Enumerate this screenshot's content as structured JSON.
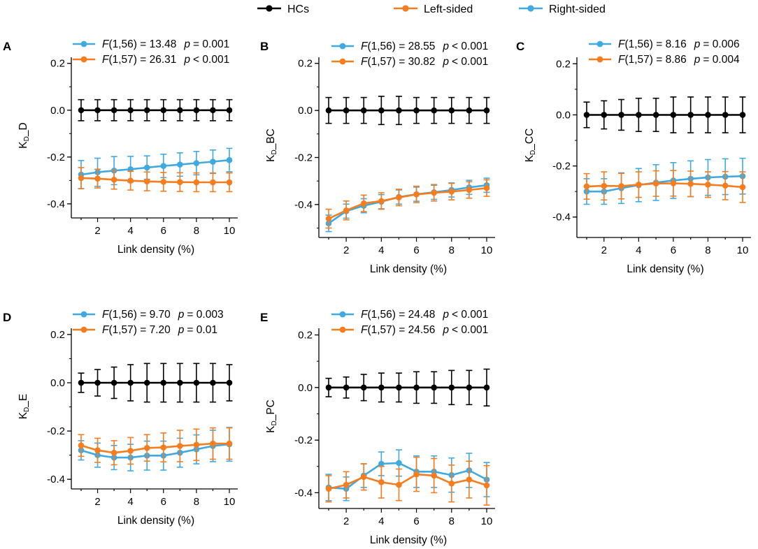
{
  "legend": {
    "items": [
      {
        "label": "HCs",
        "color": "#000000"
      },
      {
        "label": "Left-sided",
        "color": "#F47D20"
      },
      {
        "label": "Right-sided",
        "color": "#3FA9E0"
      }
    ]
  },
  "colors": {
    "hcs": "#000000",
    "left": "#F47D20",
    "right": "#3FA9E0"
  },
  "chart_data": [
    {
      "type": "line",
      "panel": "A",
      "ylabel": "KD_D",
      "ylabel_main": "K",
      "ylabel_sub": "D",
      "ylabel_suffix": "_D",
      "xlabel": "Link density (%)",
      "xlim": [
        0.5,
        10.5
      ],
      "ylim": [
        -0.46,
        0.22
      ],
      "xticks": [
        "2",
        "4",
        "6",
        "8",
        "10"
      ],
      "yticks": [
        "0.2",
        "0.0",
        "-0.2",
        "-0.4"
      ],
      "x": [
        1,
        2,
        3,
        4,
        5,
        6,
        7,
        8,
        9,
        10
      ],
      "stats": [
        {
          "color": "right",
          "F": "F",
          "dof": "(1,56) = 13.48",
          "p": "p",
          "pval": "= 0.001"
        },
        {
          "color": "left",
          "F": "F",
          "dof": "(1,57) = 26.31",
          "p": "p",
          "pval": "< 0.001"
        }
      ],
      "series": [
        {
          "name": "HCs",
          "color": "hcs",
          "values": [
            0,
            0,
            0,
            0,
            0,
            0,
            0,
            0,
            0,
            0
          ],
          "err": [
            0.045,
            0.045,
            0.045,
            0.045,
            0.045,
            0.045,
            0.045,
            0.045,
            0.045,
            0.045
          ]
        },
        {
          "name": "Left-sided",
          "color": "left",
          "values": [
            -0.29,
            -0.292,
            -0.297,
            -0.301,
            -0.304,
            -0.306,
            -0.307,
            -0.308,
            -0.308,
            -0.308
          ],
          "err": [
            0.045,
            0.04,
            0.04,
            0.04,
            0.04,
            0.04,
            0.04,
            0.04,
            0.04,
            0.04
          ]
        },
        {
          "name": "Right-sided",
          "color": "right",
          "values": [
            -0.275,
            -0.265,
            -0.258,
            -0.252,
            -0.245,
            -0.238,
            -0.232,
            -0.226,
            -0.22,
            -0.213
          ],
          "err": [
            0.06,
            0.06,
            0.06,
            0.055,
            0.05,
            0.05,
            0.05,
            0.05,
            0.05,
            0.05
          ]
        }
      ]
    },
    {
      "type": "line",
      "panel": "B",
      "ylabel": "KD_BC",
      "ylabel_main": "K",
      "ylabel_sub": "D",
      "ylabel_suffix": "_BC",
      "xlabel": "Link density (%)",
      "xlim": [
        0.5,
        10.5
      ],
      "ylim": [
        -0.54,
        0.22
      ],
      "xticks": [
        "2",
        "4",
        "6",
        "8",
        "10"
      ],
      "yticks": [
        "0.2",
        "0.0",
        "-0.2",
        "-0.4"
      ],
      "x": [
        1,
        2,
        3,
        4,
        5,
        6,
        7,
        8,
        9,
        10
      ],
      "stats": [
        {
          "color": "right",
          "F": "F",
          "dof": "(1,56) = 28.55",
          "p": "p",
          "pval": "< 0.001"
        },
        {
          "color": "left",
          "F": "F",
          "dof": "(1,57) = 30.82",
          "p": "p",
          "pval": "< 0.001"
        }
      ],
      "series": [
        {
          "name": "HCs",
          "color": "hcs",
          "values": [
            0,
            0,
            0,
            0,
            0,
            0,
            0,
            0,
            0,
            0
          ],
          "err": [
            0.055,
            0.055,
            0.055,
            0.06,
            0.06,
            0.055,
            0.055,
            0.055,
            0.055,
            0.055
          ]
        },
        {
          "name": "Left-sided",
          "color": "left",
          "values": [
            -0.46,
            -0.425,
            -0.395,
            -0.385,
            -0.37,
            -0.357,
            -0.35,
            -0.345,
            -0.338,
            -0.33
          ],
          "err": [
            0.04,
            0.04,
            0.035,
            0.035,
            0.035,
            0.035,
            0.035,
            0.035,
            0.035,
            0.035
          ]
        },
        {
          "name": "Right-sided",
          "color": "right",
          "values": [
            -0.48,
            -0.428,
            -0.405,
            -0.388,
            -0.368,
            -0.356,
            -0.348,
            -0.338,
            -0.327,
            -0.318
          ],
          "err": [
            0.035,
            0.03,
            0.03,
            0.03,
            0.03,
            0.03,
            0.03,
            0.03,
            0.03,
            0.03
          ]
        }
      ]
    },
    {
      "type": "line",
      "panel": "C",
      "ylabel": "KD_CC",
      "ylabel_main": "K",
      "ylabel_sub": "D",
      "ylabel_suffix": "_CC",
      "xlabel": "Link density (%)",
      "xlim": [
        0.5,
        10.5
      ],
      "ylim": [
        -0.48,
        0.22
      ],
      "xticks": [
        "2",
        "4",
        "6",
        "8",
        "10"
      ],
      "yticks": [
        "0.2",
        "0.0",
        "-0.2",
        "-0.4"
      ],
      "x": [
        1,
        2,
        3,
        4,
        5,
        6,
        7,
        8,
        9,
        10
      ],
      "stats": [
        {
          "color": "right",
          "F": "F",
          "dof": "(1,56) = 8.16",
          "p": "p",
          "pval": "= 0.006"
        },
        {
          "color": "left",
          "F": "F",
          "dof": "(1,57) = 8.86",
          "p": "p",
          "pval": "= 0.004"
        }
      ],
      "series": [
        {
          "name": "HCs",
          "color": "hcs",
          "values": [
            0,
            0,
            0,
            0,
            0,
            0,
            0,
            0,
            0,
            0
          ],
          "err": [
            0.05,
            0.055,
            0.06,
            0.065,
            0.065,
            0.07,
            0.07,
            0.07,
            0.07,
            0.07
          ]
        },
        {
          "name": "Left-sided",
          "color": "left",
          "values": [
            -0.28,
            -0.278,
            -0.279,
            -0.273,
            -0.269,
            -0.268,
            -0.27,
            -0.273,
            -0.277,
            -0.283
          ],
          "err": [
            0.05,
            0.055,
            0.05,
            0.05,
            0.05,
            0.05,
            0.05,
            0.05,
            0.055,
            0.06
          ]
        },
        {
          "name": "Right-sided",
          "color": "right",
          "values": [
            -0.3,
            -0.3,
            -0.287,
            -0.275,
            -0.265,
            -0.257,
            -0.25,
            -0.245,
            -0.242,
            -0.24
          ],
          "err": [
            0.05,
            0.05,
            0.06,
            0.065,
            0.07,
            0.07,
            0.07,
            0.07,
            0.07,
            0.07
          ]
        }
      ]
    },
    {
      "type": "line",
      "panel": "D",
      "ylabel": "KD_E",
      "ylabel_main": "K",
      "ylabel_sub": "D",
      "ylabel_suffix": "_E",
      "xlabel": "Link density (%)",
      "xlim": [
        0.5,
        10.5
      ],
      "ylim": [
        -0.44,
        0.22
      ],
      "xticks": [
        "2",
        "4",
        "6",
        "8",
        "10"
      ],
      "yticks": [
        "0.2",
        "0.0",
        "-0.2",
        "-0.4"
      ],
      "x": [
        1,
        2,
        3,
        4,
        5,
        6,
        7,
        8,
        9,
        10
      ],
      "stats": [
        {
          "color": "right",
          "F": "F",
          "dof": "(1,56) = 9.70",
          "p": "p",
          "pval": "= 0.003"
        },
        {
          "color": "left",
          "F": "F",
          "dof": "(1,57) = 7.20",
          "p": "p",
          "pval": "= 0.01"
        }
      ],
      "series": [
        {
          "name": "HCs",
          "color": "hcs",
          "values": [
            0,
            0,
            0,
            0,
            0,
            0,
            0,
            0,
            0,
            0
          ],
          "err": [
            0.04,
            0.055,
            0.065,
            0.075,
            0.08,
            0.08,
            0.08,
            0.08,
            0.08,
            0.075
          ]
        },
        {
          "name": "Left-sided",
          "color": "left",
          "values": [
            -0.26,
            -0.28,
            -0.29,
            -0.282,
            -0.27,
            -0.268,
            -0.262,
            -0.257,
            -0.252,
            -0.252
          ],
          "err": [
            0.045,
            0.05,
            0.05,
            0.055,
            0.055,
            0.06,
            0.065,
            0.065,
            0.065,
            0.065
          ]
        },
        {
          "name": "Right-sided",
          "color": "right",
          "values": [
            -0.28,
            -0.3,
            -0.31,
            -0.31,
            -0.302,
            -0.302,
            -0.29,
            -0.276,
            -0.262,
            -0.255
          ],
          "err": [
            0.04,
            0.05,
            0.05,
            0.055,
            0.06,
            0.06,
            0.06,
            0.06,
            0.065,
            0.07
          ]
        }
      ]
    },
    {
      "type": "line",
      "panel": "E",
      "ylabel": "KD_PC",
      "ylabel_main": "K",
      "ylabel_sub": "D",
      "ylabel_suffix": "_PC",
      "xlabel": "Link density (%)",
      "xlim": [
        0.5,
        10.5
      ],
      "ylim": [
        -0.46,
        0.22
      ],
      "xticks": [
        "2",
        "4",
        "6",
        "8",
        "10"
      ],
      "yticks": [
        "0.2",
        "0.0",
        "-0.2",
        "-0.4"
      ],
      "x": [
        1,
        2,
        3,
        4,
        5,
        6,
        7,
        8,
        9,
        10
      ],
      "stats": [
        {
          "color": "right",
          "F": "F",
          "dof": "(1,56) = 24.48",
          "p": "p",
          "pval": "< 0.001"
        },
        {
          "color": "left",
          "F": "F",
          "dof": "(1,57) = 24.56",
          "p": "p",
          "pval": "< 0.001"
        }
      ],
      "series": [
        {
          "name": "HCs",
          "color": "hcs",
          "values": [
            0,
            0,
            0,
            0,
            0,
            0,
            0,
            0,
            0,
            0
          ],
          "err": [
            0.035,
            0.04,
            0.05,
            0.055,
            0.055,
            0.06,
            0.06,
            0.065,
            0.065,
            0.07
          ]
        },
        {
          "name": "Left-sided",
          "color": "left",
          "values": [
            -0.385,
            -0.37,
            -0.34,
            -0.36,
            -0.37,
            -0.33,
            -0.335,
            -0.365,
            -0.35,
            -0.372
          ],
          "err": [
            0.05,
            0.05,
            0.05,
            0.06,
            0.06,
            0.065,
            0.065,
            0.07,
            0.07,
            0.075
          ]
        },
        {
          "name": "Right-sided",
          "color": "right",
          "values": [
            -0.38,
            -0.385,
            -0.335,
            -0.29,
            -0.287,
            -0.32,
            -0.32,
            -0.333,
            -0.315,
            -0.35
          ],
          "err": [
            0.05,
            0.045,
            0.045,
            0.045,
            0.05,
            0.06,
            0.06,
            0.065,
            0.065,
            0.065
          ]
        }
      ]
    }
  ]
}
